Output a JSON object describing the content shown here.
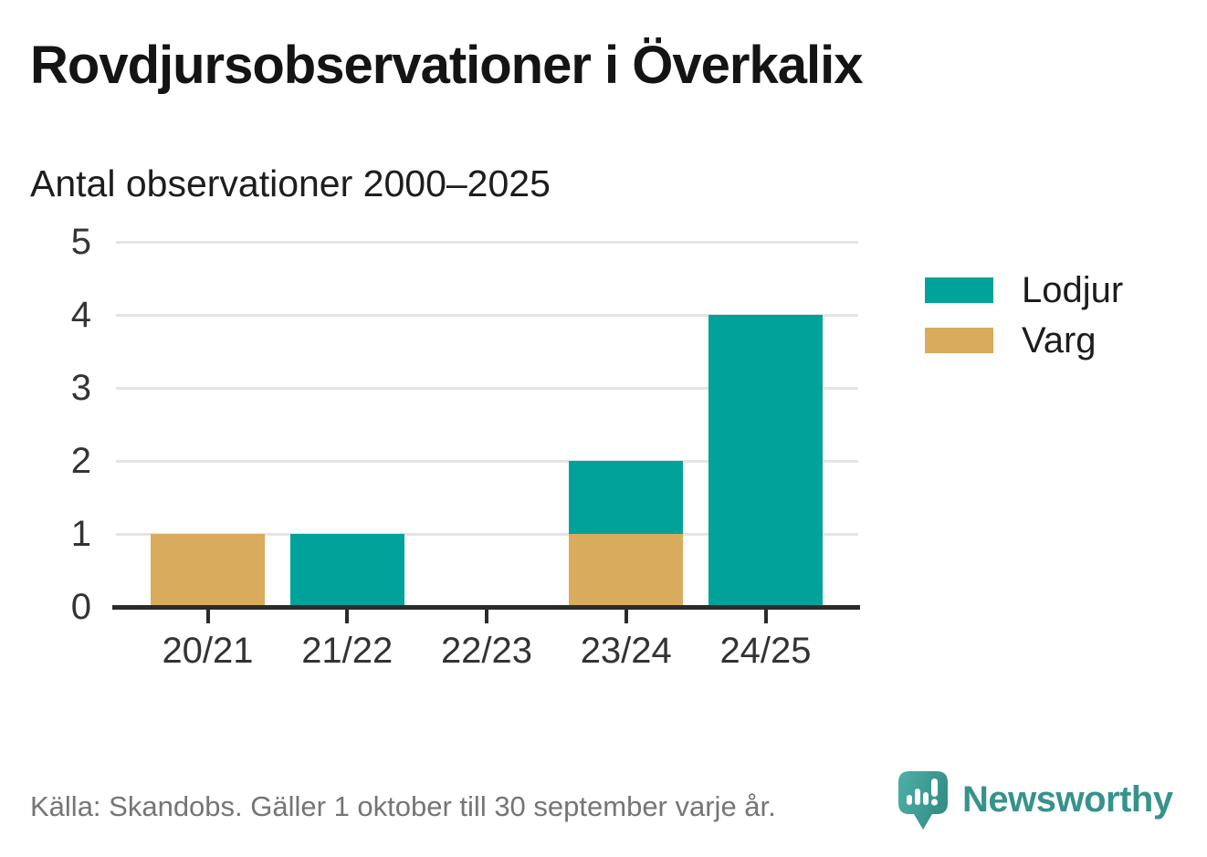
{
  "title": "Rovdjursobservationer i Överkalix",
  "subtitle": "Antal observationer 2000–2025",
  "footer": {
    "source": "Källa: Skandobs. Gäller 1 oktober till 30 september varje år."
  },
  "branding": {
    "name": "Newsworthy",
    "wordmark_color": "#37928c",
    "logo_color_light": "#4db0a7",
    "logo_color_dark": "#358e88"
  },
  "legend": [
    {
      "label": "Lodjur",
      "color": "#00a29a"
    },
    {
      "label": "Varg",
      "color": "#d9ab5c"
    }
  ],
  "colors": {
    "teal": "#00a29a",
    "gold": "#d9ab5c",
    "gridline": "#e4e4e4",
    "axis": "#2b2b2b",
    "axis_text": "#333333",
    "source_text": "#757575"
  },
  "chart_data": {
    "type": "bar",
    "stacked": true,
    "title": "Rovdjursobservationer i Överkalix",
    "subtitle": "Antal observationer 2000–2025",
    "categories": [
      "20/21",
      "21/22",
      "22/23",
      "23/24",
      "24/25"
    ],
    "series": [
      {
        "name": "Varg",
        "color": "#d9ab5c",
        "values": [
          1,
          0,
          0,
          1,
          0
        ]
      },
      {
        "name": "Lodjur",
        "color": "#00a29a",
        "values": [
          0,
          1,
          0,
          1,
          4
        ]
      }
    ],
    "totals_by_category": [
      1,
      1,
      0,
      2,
      4
    ],
    "xlabel": "",
    "ylabel": "",
    "ylim": [
      0,
      5
    ],
    "yticks": [
      0,
      1,
      2,
      3,
      4,
      5
    ],
    "grid": true,
    "legend_position": "right",
    "source": "Källa: Skandobs. Gäller 1 oktober till 30 september varje år."
  }
}
